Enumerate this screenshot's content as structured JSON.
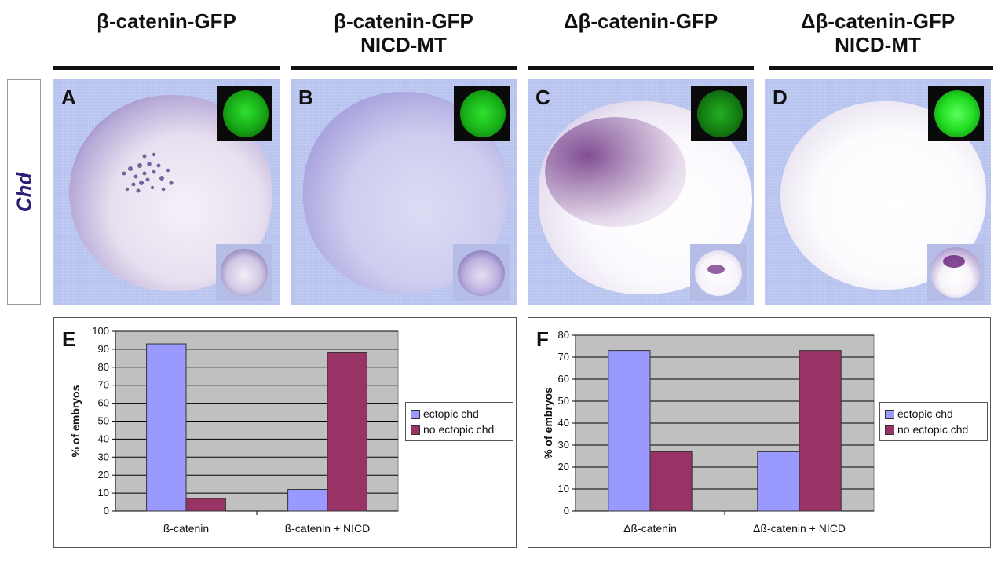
{
  "columns": [
    {
      "title_line1": "β-catenin-GFP",
      "title_line2": ""
    },
    {
      "title_line1": "β-catenin-GFP",
      "title_line2": "NICD-MT"
    },
    {
      "title_line1": "Δβ-catenin-GFP",
      "title_line2": ""
    },
    {
      "title_line1": "Δβ-catenin-GFP",
      "title_line2": "NICD-MT"
    }
  ],
  "row_label": "Chd",
  "panels": [
    {
      "letter": "A"
    },
    {
      "letter": "B"
    },
    {
      "letter": "C"
    },
    {
      "letter": "D"
    }
  ],
  "colors": {
    "ectopic": "#9999ff",
    "no_ectopic": "#993366",
    "plot_bg": "#c0c0c0",
    "gfp": "#22ee22"
  },
  "chart_data": [
    {
      "panel_letter": "E",
      "type": "bar",
      "categories": [
        "ß-catenin",
        "ß-catenin + NICD"
      ],
      "series": [
        {
          "name": "ectopic chd",
          "values": [
            93,
            12
          ]
        },
        {
          "name": "no ectopic chd",
          "values": [
            7,
            88
          ]
        }
      ],
      "ylabel": "% of embryos",
      "ylim": [
        0,
        100
      ],
      "yticks": [
        0,
        10,
        20,
        30,
        40,
        50,
        60,
        70,
        80,
        90,
        100
      ],
      "grid": true,
      "legend_position": "right"
    },
    {
      "panel_letter": "F",
      "type": "bar",
      "categories": [
        "Δß-catenin",
        "Δß-catenin + NICD"
      ],
      "series": [
        {
          "name": "ectopic chd",
          "values": [
            73,
            27
          ]
        },
        {
          "name": "no ectopic chd",
          "values": [
            27,
            73
          ]
        }
      ],
      "ylabel": "% of embryos",
      "ylim": [
        0,
        80
      ],
      "yticks": [
        0,
        10,
        20,
        30,
        40,
        50,
        60,
        70,
        80
      ],
      "grid": true,
      "legend_position": "right"
    }
  ]
}
